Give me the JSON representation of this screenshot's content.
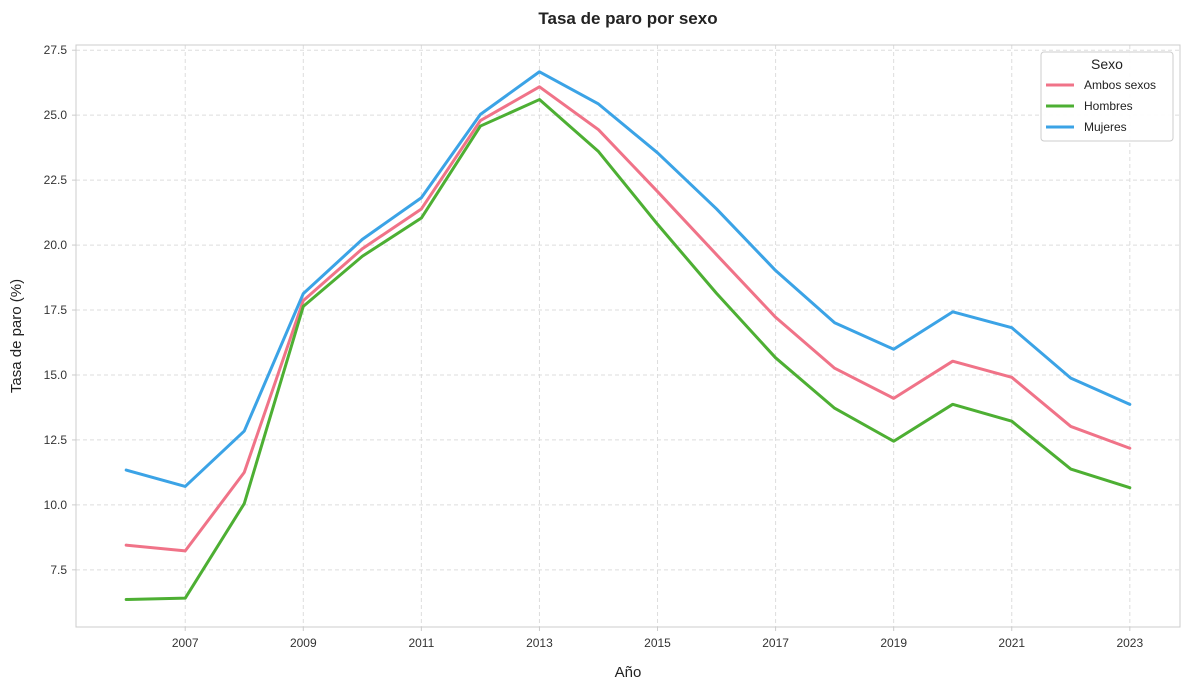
{
  "chart_data": {
    "type": "line",
    "title": "Tasa de paro por sexo",
    "xlabel": "Año",
    "ylabel": "Tasa de paro (%)",
    "x": [
      2006,
      2007,
      2008,
      2009,
      2010,
      2011,
      2012,
      2013,
      2014,
      2015,
      2016,
      2017,
      2018,
      2019,
      2020,
      2021,
      2022,
      2023
    ],
    "xticks": [
      2007,
      2009,
      2011,
      2013,
      2015,
      2017,
      2019,
      2021,
      2023
    ],
    "yticks": [
      7.5,
      10.0,
      12.5,
      15.0,
      17.5,
      20.0,
      22.5,
      25.0,
      27.5
    ],
    "xlim": [
      2005.15,
      2023.85
    ],
    "ylim": [
      5.3,
      27.7
    ],
    "grid": true,
    "legend": {
      "title": "Sexo",
      "placement": "top-right"
    },
    "series": [
      {
        "name": "Ambos sexos",
        "color": "#f07388",
        "values": [
          8.45,
          8.23,
          11.25,
          17.86,
          19.86,
          21.39,
          24.79,
          26.09,
          24.44,
          22.06,
          19.63,
          17.22,
          15.26,
          14.1,
          15.53,
          14.91,
          13.02,
          12.18
        ]
      },
      {
        "name": "Hombres",
        "color": "#4daf33",
        "values": [
          6.36,
          6.41,
          10.05,
          17.64,
          19.57,
          21.04,
          24.58,
          25.6,
          23.6,
          20.8,
          18.14,
          15.66,
          13.72,
          12.45,
          13.87,
          13.22,
          11.38,
          10.66
        ]
      },
      {
        "name": "Mujeres",
        "color": "#3ba3e6",
        "values": [
          11.34,
          10.71,
          12.84,
          18.13,
          20.22,
          21.82,
          25.03,
          26.67,
          25.43,
          23.55,
          21.39,
          19.02,
          17.01,
          15.99,
          17.43,
          16.82,
          14.88,
          13.87
        ]
      }
    ]
  }
}
